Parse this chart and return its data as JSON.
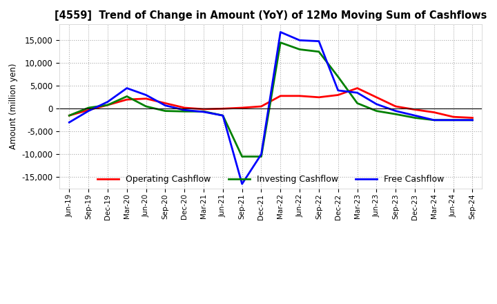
{
  "title": "[4559]  Trend of Change in Amount (YoY) of 12Mo Moving Sum of Cashflows",
  "ylabel": "Amount (million yen)",
  "ylim": [
    -17500,
    18500
  ],
  "yticks": [
    -15000,
    -10000,
    -5000,
    0,
    5000,
    10000,
    15000
  ],
  "x_labels": [
    "Jun-19",
    "Sep-19",
    "Dec-19",
    "Mar-20",
    "Jun-20",
    "Sep-20",
    "Dec-20",
    "Mar-21",
    "Jun-21",
    "Sep-21",
    "Dec-21",
    "Mar-22",
    "Jun-22",
    "Sep-22",
    "Dec-22",
    "Mar-23",
    "Jun-23",
    "Sep-23",
    "Dec-23",
    "Mar-24",
    "Jun-24",
    "Sep-24"
  ],
  "operating_cashflow": [
    -1500,
    -300,
    800,
    2000,
    2200,
    1200,
    200,
    -100,
    0,
    200,
    500,
    2800,
    2800,
    2500,
    3000,
    4500,
    2500,
    500,
    -200,
    -800,
    -1800,
    -2000
  ],
  "investing_cashflow": [
    -1500,
    200,
    800,
    2700,
    500,
    -500,
    -600,
    -600,
    -1500,
    -10500,
    -10500,
    14500,
    13000,
    12500,
    7000,
    1200,
    -500,
    -1200,
    -2000,
    -2500,
    -2500,
    -2500
  ],
  "free_cashflow": [
    -3000,
    -500,
    1500,
    4500,
    3000,
    700,
    -300,
    -700,
    -1500,
    -16500,
    -10000,
    16800,
    15000,
    14800,
    4000,
    3500,
    1000,
    -500,
    -1500,
    -2500,
    -2500,
    -2500
  ],
  "operating_color": "#ff0000",
  "investing_color": "#008000",
  "free_color": "#0000ff",
  "background_color": "#ffffff",
  "grid_color": "#aaaaaa",
  "title_fontsize": 10.5,
  "legend_labels": [
    "Operating Cashflow",
    "Investing Cashflow",
    "Free Cashflow"
  ]
}
